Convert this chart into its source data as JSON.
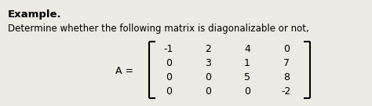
{
  "title_bold": "Example.",
  "subtitle": "Determine whether the following matrix is diagonalizable or not,",
  "label_A": "A =",
  "matrix": [
    [
      "-1",
      "2",
      "4",
      "0"
    ],
    [
      "0",
      "3",
      "1",
      "7"
    ],
    [
      "0",
      "0",
      "5",
      "8"
    ],
    [
      "0",
      "0",
      "0",
      "-2"
    ]
  ],
  "bg_color": "#ede9e3",
  "text_color": "#000000",
  "title_fontsize": 9.5,
  "body_fontsize": 8.5,
  "matrix_fontsize": 9.0,
  "label_fontsize": 9.0
}
